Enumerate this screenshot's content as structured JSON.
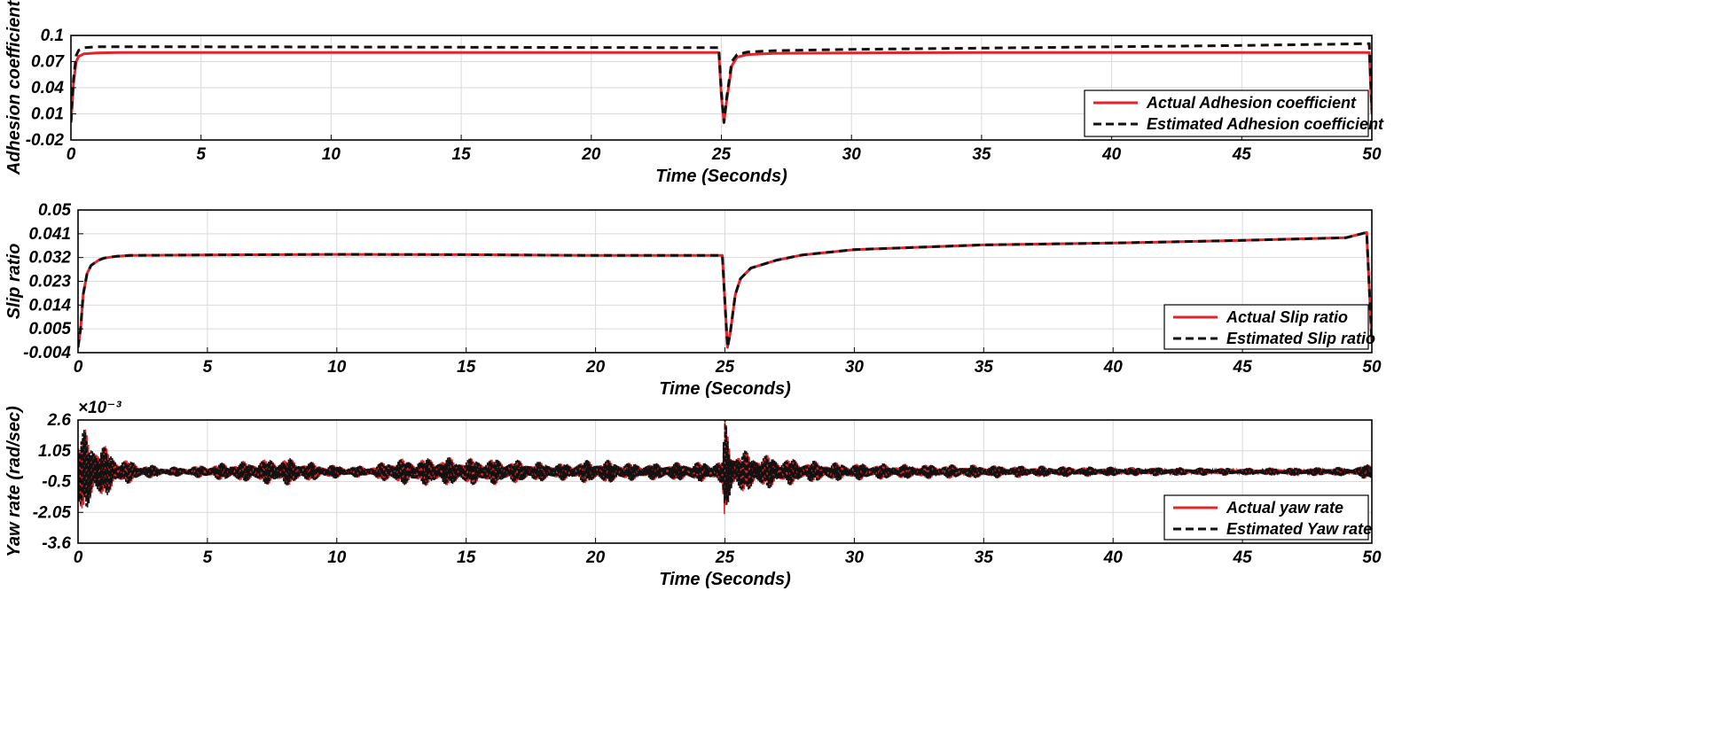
{
  "figure_colors": {
    "actual": "#e0262b",
    "estimated": "#111111",
    "grid": "#d9d9d9",
    "frame": "#000000"
  },
  "chart_data": [
    {
      "type": "line",
      "id": "adhesion",
      "title": "",
      "xlabel": "Time (Seconds)",
      "ylabel": "Adhesion coefficient",
      "xlim": [
        0,
        50
      ],
      "ylim": [
        -0.02,
        0.1
      ],
      "x_ticks": [
        0,
        5,
        10,
        15,
        20,
        25,
        30,
        35,
        40,
        45,
        50
      ],
      "x_tick_labels": [
        "0",
        "5",
        "10",
        "15",
        "20",
        "25",
        "30",
        "35",
        "40",
        "45",
        "50"
      ],
      "y_ticks": [
        -0.02,
        0.01,
        0.04,
        0.07,
        0.1
      ],
      "y_tick_labels": [
        "-0.02",
        "0.01",
        "0.04",
        "0.07",
        "0.1"
      ],
      "y_exponent": "",
      "grid": true,
      "legend_position": "bottom-right",
      "series": [
        {
          "name": "Actual Adhesion coefficient",
          "color": "#e0262b",
          "style": "solid",
          "x": [
            0,
            0.1,
            0.2,
            0.3,
            0.5,
            1,
            2,
            5,
            10,
            15,
            20,
            24.9,
            25,
            25.1,
            25.2,
            25.4,
            25.6,
            26,
            27,
            30,
            35,
            40,
            45,
            49.9,
            50
          ],
          "y": [
            0.0,
            0.045,
            0.07,
            0.076,
            0.079,
            0.08,
            0.0805,
            0.0805,
            0.0805,
            0.0805,
            0.0805,
            0.0805,
            0.03,
            0.0,
            0.025,
            0.065,
            0.075,
            0.078,
            0.0795,
            0.08,
            0.0805,
            0.0805,
            0.0805,
            0.0805,
            0.01
          ]
        },
        {
          "name": "Estimated Adhesion coefficient",
          "color": "#111111",
          "style": "dashed",
          "x": [
            0,
            0.1,
            0.2,
            0.3,
            0.5,
            1,
            2,
            5,
            10,
            15,
            20,
            24.9,
            25,
            25.1,
            25.2,
            25.4,
            25.6,
            26,
            27,
            30,
            35,
            40,
            45,
            49.9,
            50
          ],
          "y": [
            0.0,
            0.05,
            0.077,
            0.083,
            0.086,
            0.087,
            0.087,
            0.087,
            0.0868,
            0.0865,
            0.0862,
            0.086,
            0.035,
            0.0,
            0.028,
            0.07,
            0.078,
            0.081,
            0.0825,
            0.084,
            0.0855,
            0.087,
            0.0885,
            0.0905,
            0.015
          ]
        }
      ]
    },
    {
      "type": "line",
      "id": "slip",
      "title": "",
      "xlabel": "Time (Seconds)",
      "ylabel": "Slip ratio",
      "xlim": [
        0,
        50
      ],
      "ylim": [
        -0.004,
        0.05
      ],
      "x_ticks": [
        0,
        5,
        10,
        15,
        20,
        25,
        30,
        35,
        40,
        45,
        50
      ],
      "x_tick_labels": [
        "0",
        "5",
        "10",
        "15",
        "20",
        "25",
        "30",
        "35",
        "40",
        "45",
        "50"
      ],
      "y_ticks": [
        -0.004,
        0.005,
        0.014,
        0.023,
        0.032,
        0.041,
        0.05
      ],
      "y_tick_labels": [
        "-0.004",
        "0.005",
        "0.014",
        "0.023",
        "0.032",
        "0.041",
        "0.05"
      ],
      "y_exponent": "",
      "grid": true,
      "legend_position": "bottom-right",
      "series": [
        {
          "name": "Actual Slip ratio",
          "color": "#e0262b",
          "style": "solid",
          "x": [
            0,
            0.1,
            0.2,
            0.35,
            0.5,
            0.8,
            1,
            1.5,
            2,
            5,
            10,
            15,
            20,
            24.9,
            25,
            25.1,
            25.2,
            25.4,
            25.6,
            26,
            27,
            28,
            30,
            35,
            40,
            45,
            49,
            49.8,
            50
          ],
          "y": [
            -0.002,
            0.005,
            0.018,
            0.026,
            0.029,
            0.031,
            0.0318,
            0.0325,
            0.0328,
            0.033,
            0.0332,
            0.0331,
            0.0328,
            0.0328,
            0.015,
            -0.002,
            0.003,
            0.018,
            0.024,
            0.028,
            0.031,
            0.033,
            0.035,
            0.0368,
            0.0375,
            0.0385,
            0.0395,
            0.0415,
            0.0
          ]
        },
        {
          "name": "Estimated Slip ratio",
          "color": "#111111",
          "style": "dashed",
          "x": [
            0,
            0.1,
            0.2,
            0.35,
            0.5,
            0.8,
            1,
            1.5,
            2,
            5,
            10,
            15,
            20,
            24.9,
            25,
            25.1,
            25.2,
            25.4,
            25.6,
            26,
            27,
            28,
            30,
            35,
            40,
            45,
            49,
            49.8,
            50
          ],
          "y": [
            -0.002,
            0.005,
            0.018,
            0.026,
            0.029,
            0.031,
            0.0318,
            0.0325,
            0.0328,
            0.033,
            0.0332,
            0.0331,
            0.0328,
            0.0328,
            0.015,
            -0.002,
            0.003,
            0.018,
            0.024,
            0.028,
            0.031,
            0.033,
            0.035,
            0.0368,
            0.0375,
            0.0385,
            0.0395,
            0.0415,
            0.0
          ]
        }
      ]
    },
    {
      "type": "line",
      "id": "yaw",
      "title": "",
      "xlabel": "Time (Seconds)",
      "ylabel": "Yaw rate (rad/sec)",
      "xlim": [
        0,
        50
      ],
      "ylim": [
        -3.6,
        2.6
      ],
      "x_ticks": [
        0,
        5,
        10,
        15,
        20,
        25,
        30,
        35,
        40,
        45,
        50
      ],
      "x_tick_labels": [
        "0",
        "5",
        "10",
        "15",
        "20",
        "25",
        "30",
        "35",
        "40",
        "45",
        "50"
      ],
      "y_ticks": [
        -3.6,
        -2.05,
        -0.5,
        1.05,
        2.6
      ],
      "y_tick_labels": [
        "-3.6",
        "-2.05",
        "-0.5",
        "1.05",
        "2.6"
      ],
      "y_exponent": "×10⁻³",
      "grid": true,
      "legend_position": "bottom-right",
      "oscillation_center": 0.0,
      "envelope": {
        "t": [
          0,
          0.3,
          0.8,
          1.5,
          2.5,
          3.5,
          4.5,
          5.5,
          6.5,
          7.5,
          8.0,
          8.5,
          9.5,
          10.5,
          11.5,
          12.0,
          13.0,
          14.0,
          15.0,
          16.0,
          17.0,
          18.0,
          19.0,
          19.5,
          20.5,
          21.5,
          22.5,
          23.5,
          24.5,
          24.9,
          25.0,
          25.3,
          26.0,
          27.0,
          28.0,
          29.0,
          30.0,
          32.0,
          35.0,
          40.0,
          45.0,
          49.5,
          50.0
        ],
        "amp": [
          1.8,
          2.2,
          1.6,
          0.8,
          0.4,
          0.25,
          0.3,
          0.45,
          0.55,
          0.7,
          0.75,
          0.6,
          0.4,
          0.3,
          0.35,
          0.65,
          0.7,
          0.75,
          0.7,
          0.7,
          0.6,
          0.5,
          0.45,
          0.6,
          0.6,
          0.45,
          0.45,
          0.5,
          0.55,
          0.6,
          3.0,
          1.2,
          1.0,
          0.8,
          0.6,
          0.5,
          0.45,
          0.4,
          0.35,
          0.25,
          0.2,
          0.25,
          0.6
        ]
      },
      "series": [
        {
          "name": "Actual yaw rate",
          "color": "#e0262b",
          "style": "solid"
        },
        {
          "name": "Estimated Yaw rate",
          "color": "#111111",
          "style": "dashed"
        }
      ]
    }
  ]
}
